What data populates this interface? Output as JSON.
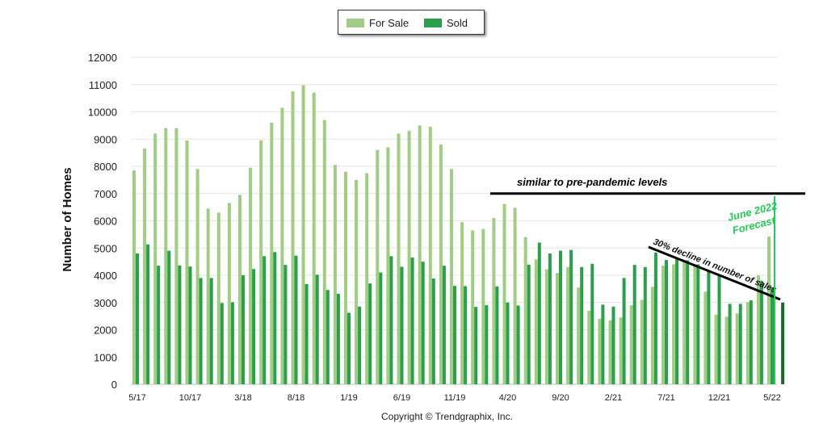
{
  "chart_data": {
    "type": "bar",
    "ylabel": "Number of Homes",
    "xlabel": "",
    "ylim": [
      0,
      12000
    ],
    "yticks": [
      0,
      1000,
      2000,
      3000,
      4000,
      5000,
      6000,
      7000,
      8000,
      9000,
      10000,
      11000,
      12000
    ],
    "grid": true,
    "legend_position": "top-center",
    "xtick_labels": [
      {
        "index": 0,
        "label": "5/17"
      },
      {
        "index": 5,
        "label": "10/17"
      },
      {
        "index": 10,
        "label": "3/18"
      },
      {
        "index": 15,
        "label": "8/18"
      },
      {
        "index": 20,
        "label": "1/19"
      },
      {
        "index": 25,
        "label": "6/19"
      },
      {
        "index": 30,
        "label": "11/19"
      },
      {
        "index": 35,
        "label": "4/20"
      },
      {
        "index": 40,
        "label": "9/20"
      },
      {
        "index": 45,
        "label": "2/21"
      },
      {
        "index": 50,
        "label": "7/21"
      },
      {
        "index": 55,
        "label": "12/21"
      },
      {
        "index": 60,
        "label": "5/22"
      }
    ],
    "series": [
      {
        "name": "For Sale",
        "color": "#9fce82",
        "values": [
          7850,
          8650,
          9200,
          9400,
          9400,
          8950,
          7900,
          6450,
          6300,
          6650,
          6950,
          7950,
          8950,
          9600,
          10150,
          10750,
          10980,
          10700,
          9700,
          8050,
          7800,
          7500,
          7750,
          8600,
          8700,
          9200,
          9300,
          9500,
          9450,
          8800,
          7900,
          5950,
          5650,
          5700,
          6100,
          6620,
          6480,
          5400,
          4580,
          4220,
          4080,
          4300,
          3550,
          2700,
          2400,
          2350,
          2450,
          2900,
          3100,
          3580,
          4350,
          4400,
          4500,
          4350,
          3400,
          2550,
          2480,
          2600,
          3020,
          4000,
          5420,
          null
        ]
      },
      {
        "name": "Sold",
        "color": "#2aa04a",
        "values": [
          4800,
          5130,
          4350,
          4900,
          4360,
          4320,
          3900,
          3900,
          2980,
          3010,
          4000,
          4230,
          4700,
          4850,
          4380,
          4720,
          3680,
          4020,
          3460,
          3320,
          2620,
          2850,
          3700,
          4100,
          4700,
          4310,
          4650,
          4500,
          3880,
          4350,
          3610,
          3600,
          2840,
          2900,
          3590,
          3000,
          2890,
          4390,
          5200,
          4800,
          4900,
          4930,
          4300,
          4420,
          2920,
          2850,
          3900,
          4380,
          4300,
          4830,
          4560,
          4600,
          4550,
          4400,
          4150,
          4000,
          2950,
          2950,
          3080,
          3800,
          3550,
          3000
        ]
      }
    ],
    "annotations": {
      "pre_pandemic_text": "similar to pre-pandemic levels",
      "pre_pandemic_value": 7000,
      "decline_text": "30% decline in number of sales",
      "forecast_line1": "June 2022",
      "forecast_line2": "Forecast"
    }
  },
  "legend": {
    "for_sale_label": "For Sale",
    "sold_label": "Sold",
    "for_sale_color": "#9fce82",
    "sold_color": "#2aa04a"
  },
  "footer": "Copyright © Trendgraphix, Inc."
}
